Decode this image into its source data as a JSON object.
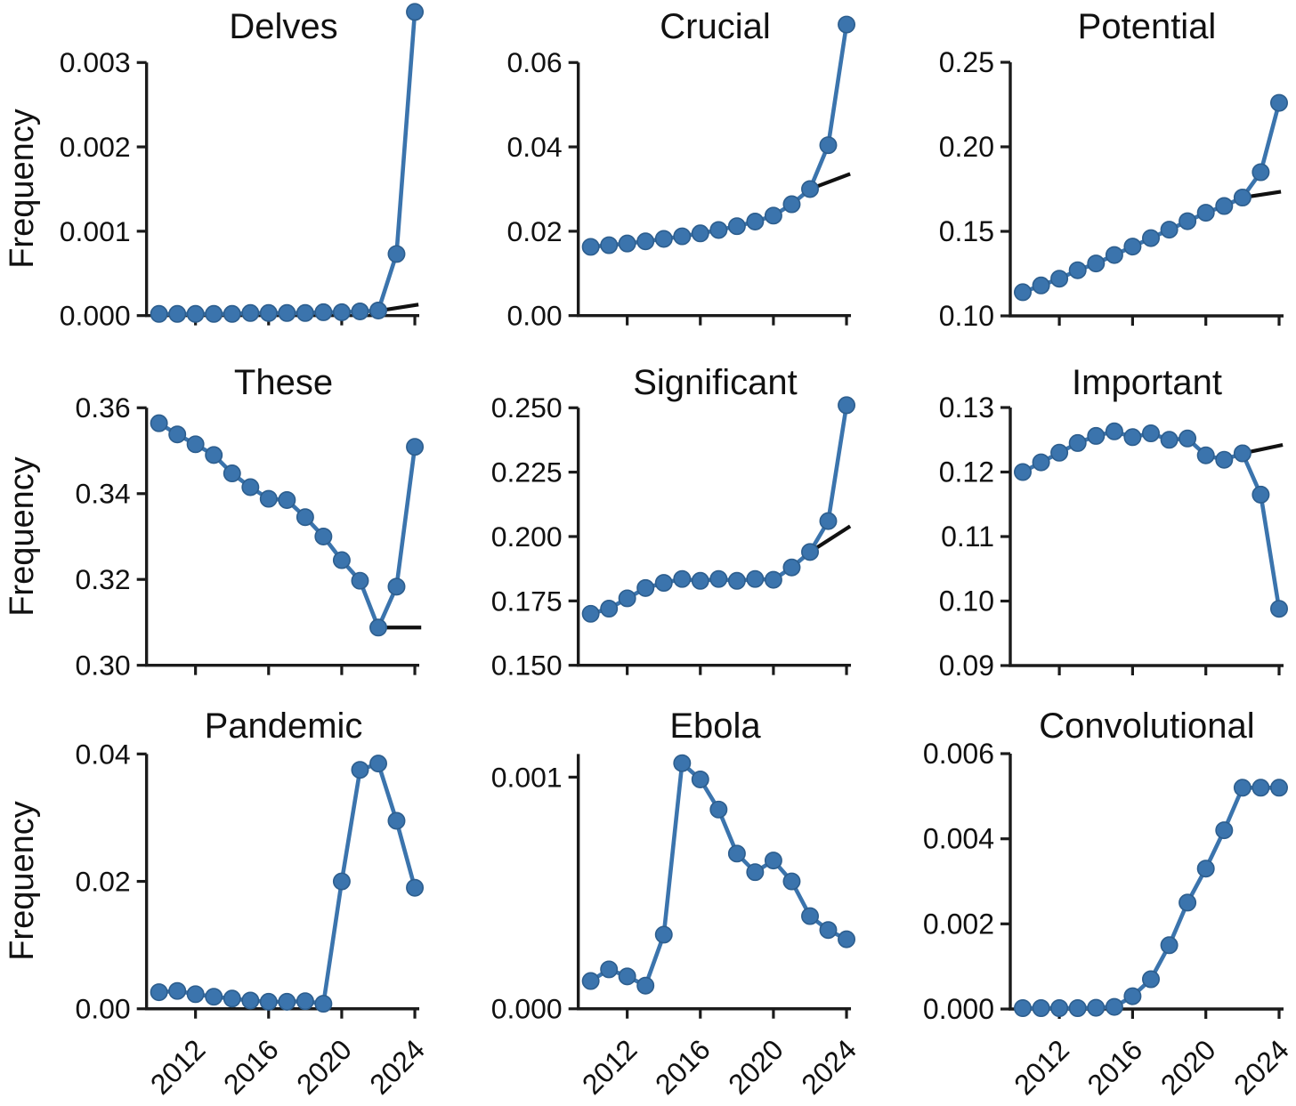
{
  "figure": {
    "ylabel": "Frequency",
    "x_years": [
      2010,
      2011,
      2012,
      2013,
      2014,
      2015,
      2016,
      2017,
      2018,
      2019,
      2020,
      2021,
      2022,
      2023,
      2024
    ],
    "xtick_years": [
      2012,
      2016,
      2020,
      2024
    ],
    "xtick_labels": [
      "2012",
      "2016",
      "2020",
      "2024"
    ],
    "colors": {
      "series": "#3b74ad",
      "marker_edge": "#2d5e8e",
      "trend": "#111111",
      "axis": "#1b1b1b",
      "text": "#111111",
      "background": "#ffffff"
    }
  },
  "chart_data": [
    {
      "type": "line",
      "title": "Delves",
      "ylim": [
        0,
        0.003
      ],
      "ytick_values": [
        0,
        0.001,
        0.002,
        0.003
      ],
      "ytick_labels": [
        "0.000",
        "0.001",
        "0.002",
        "0.003"
      ],
      "values": [
        2e-05,
        2e-05,
        2e-05,
        2e-05,
        2e-05,
        3e-05,
        3e-05,
        3e-05,
        3e-05,
        4e-05,
        4e-05,
        5e-05,
        6e-05,
        0.00073,
        0.0036
      ],
      "trend": {
        "x": [
          2021.5,
          2024.2
        ],
        "y": [
          4e-05,
          0.00013
        ]
      },
      "show_x_tick_labels": false
    },
    {
      "type": "line",
      "title": "Crucial",
      "ylim": [
        0,
        0.06
      ],
      "ytick_values": [
        0,
        0.02,
        0.04,
        0.06
      ],
      "ytick_labels": [
        "0.00",
        "0.02",
        "0.04",
        "0.06"
      ],
      "values": [
        0.0163,
        0.0167,
        0.0171,
        0.0176,
        0.0182,
        0.0188,
        0.0195,
        0.0203,
        0.0212,
        0.0223,
        0.0237,
        0.0264,
        0.03,
        0.0404,
        0.069
      ],
      "trend": {
        "x": [
          2022,
          2024.2
        ],
        "y": [
          0.03,
          0.0336
        ]
      },
      "show_x_tick_labels": false
    },
    {
      "type": "line",
      "title": "Potential",
      "ylim": [
        0.1,
        0.25
      ],
      "ytick_values": [
        0.1,
        0.15,
        0.2,
        0.25
      ],
      "ytick_labels": [
        "0.10",
        "0.15",
        "0.20",
        "0.25"
      ],
      "values": [
        0.114,
        0.118,
        0.122,
        0.127,
        0.131,
        0.136,
        0.141,
        0.146,
        0.151,
        0.156,
        0.161,
        0.165,
        0.17,
        0.185,
        0.226
      ],
      "trend": {
        "x": [
          2022,
          2024.1
        ],
        "y": [
          0.17,
          0.1735
        ]
      },
      "show_x_tick_labels": false
    },
    {
      "type": "line",
      "title": "These",
      "ylim": [
        0.3,
        0.36
      ],
      "ytick_values": [
        0.3,
        0.32,
        0.34,
        0.36
      ],
      "ytick_labels": [
        "0.30",
        "0.32",
        "0.34",
        "0.36"
      ],
      "values": [
        0.3564,
        0.3538,
        0.3515,
        0.349,
        0.3447,
        0.3415,
        0.3388,
        0.3385,
        0.3345,
        0.33,
        0.3245,
        0.3197,
        0.3088,
        0.3183,
        0.3509
      ],
      "trend": {
        "x": [
          2022.25,
          2024.35
        ],
        "y": [
          0.3088,
          0.3088
        ]
      },
      "show_x_tick_labels": false
    },
    {
      "type": "line",
      "title": "Significant",
      "ylim": [
        0.15,
        0.25
      ],
      "ytick_values": [
        0.15,
        0.175,
        0.2,
        0.225,
        0.25
      ],
      "ytick_labels": [
        "0.150",
        "0.175",
        "0.200",
        "0.225",
        "0.250"
      ],
      "values": [
        0.17,
        0.172,
        0.176,
        0.18,
        0.182,
        0.1835,
        0.1828,
        0.1835,
        0.1828,
        0.1835,
        0.1832,
        0.188,
        0.194,
        0.206,
        0.251
      ],
      "trend": {
        "x": [
          2022,
          2024.2
        ],
        "y": [
          0.194,
          0.204
        ]
      },
      "show_x_tick_labels": false
    },
    {
      "type": "line",
      "title": "Important",
      "ylim": [
        0.09,
        0.13
      ],
      "ytick_values": [
        0.09,
        0.1,
        0.11,
        0.12,
        0.13
      ],
      "ytick_labels": [
        "0.09",
        "0.10",
        "0.11",
        "0.12",
        "0.13"
      ],
      "values": [
        0.12,
        0.1215,
        0.123,
        0.1245,
        0.1256,
        0.1263,
        0.1254,
        0.126,
        0.125,
        0.1252,
        0.1226,
        0.1219,
        0.1229,
        0.1165,
        0.0988
      ],
      "trend": {
        "x": [
          2022,
          2024.2
        ],
        "y": [
          0.1229,
          0.1242
        ]
      },
      "show_x_tick_labels": false
    },
    {
      "type": "line",
      "title": "Pandemic",
      "ylim": [
        0,
        0.04
      ],
      "ytick_values": [
        0,
        0.02,
        0.04
      ],
      "ytick_labels": [
        "0.00",
        "0.02",
        "0.04"
      ],
      "values": [
        0.0026,
        0.0028,
        0.0023,
        0.0019,
        0.0016,
        0.0013,
        0.0011,
        0.0011,
        0.0012,
        0.0008,
        0.02,
        0.0375,
        0.0385,
        0.0295,
        0.019
      ],
      "trend": null,
      "show_x_tick_labels": true
    },
    {
      "type": "line",
      "title": "Ebola",
      "ylim": [
        0,
        0.0011
      ],
      "ytick_values": [
        0,
        0.001
      ],
      "ytick_labels": [
        "0.000",
        "0.001"
      ],
      "values": [
        0.00012,
        0.00017,
        0.00014,
        0.0001,
        0.00032,
        0.00106,
        0.00099,
        0.00086,
        0.00067,
        0.00059,
        0.00064,
        0.00055,
        0.0004,
        0.00034,
        0.0003
      ],
      "trend": null,
      "show_x_tick_labels": true
    },
    {
      "type": "line",
      "title": "Convolutional",
      "ylim": [
        0,
        0.006
      ],
      "ytick_values": [
        0,
        0.002,
        0.004,
        0.006
      ],
      "ytick_labels": [
        "0.000",
        "0.002",
        "0.004",
        "0.006"
      ],
      "values": [
        2e-05,
        2e-05,
        2e-05,
        2e-05,
        3e-05,
        5e-05,
        0.0003,
        0.0007,
        0.0015,
        0.0025,
        0.0033,
        0.0042,
        0.0052,
        0.0052,
        0.0052
      ],
      "trend": null,
      "show_x_tick_labels": true
    }
  ]
}
